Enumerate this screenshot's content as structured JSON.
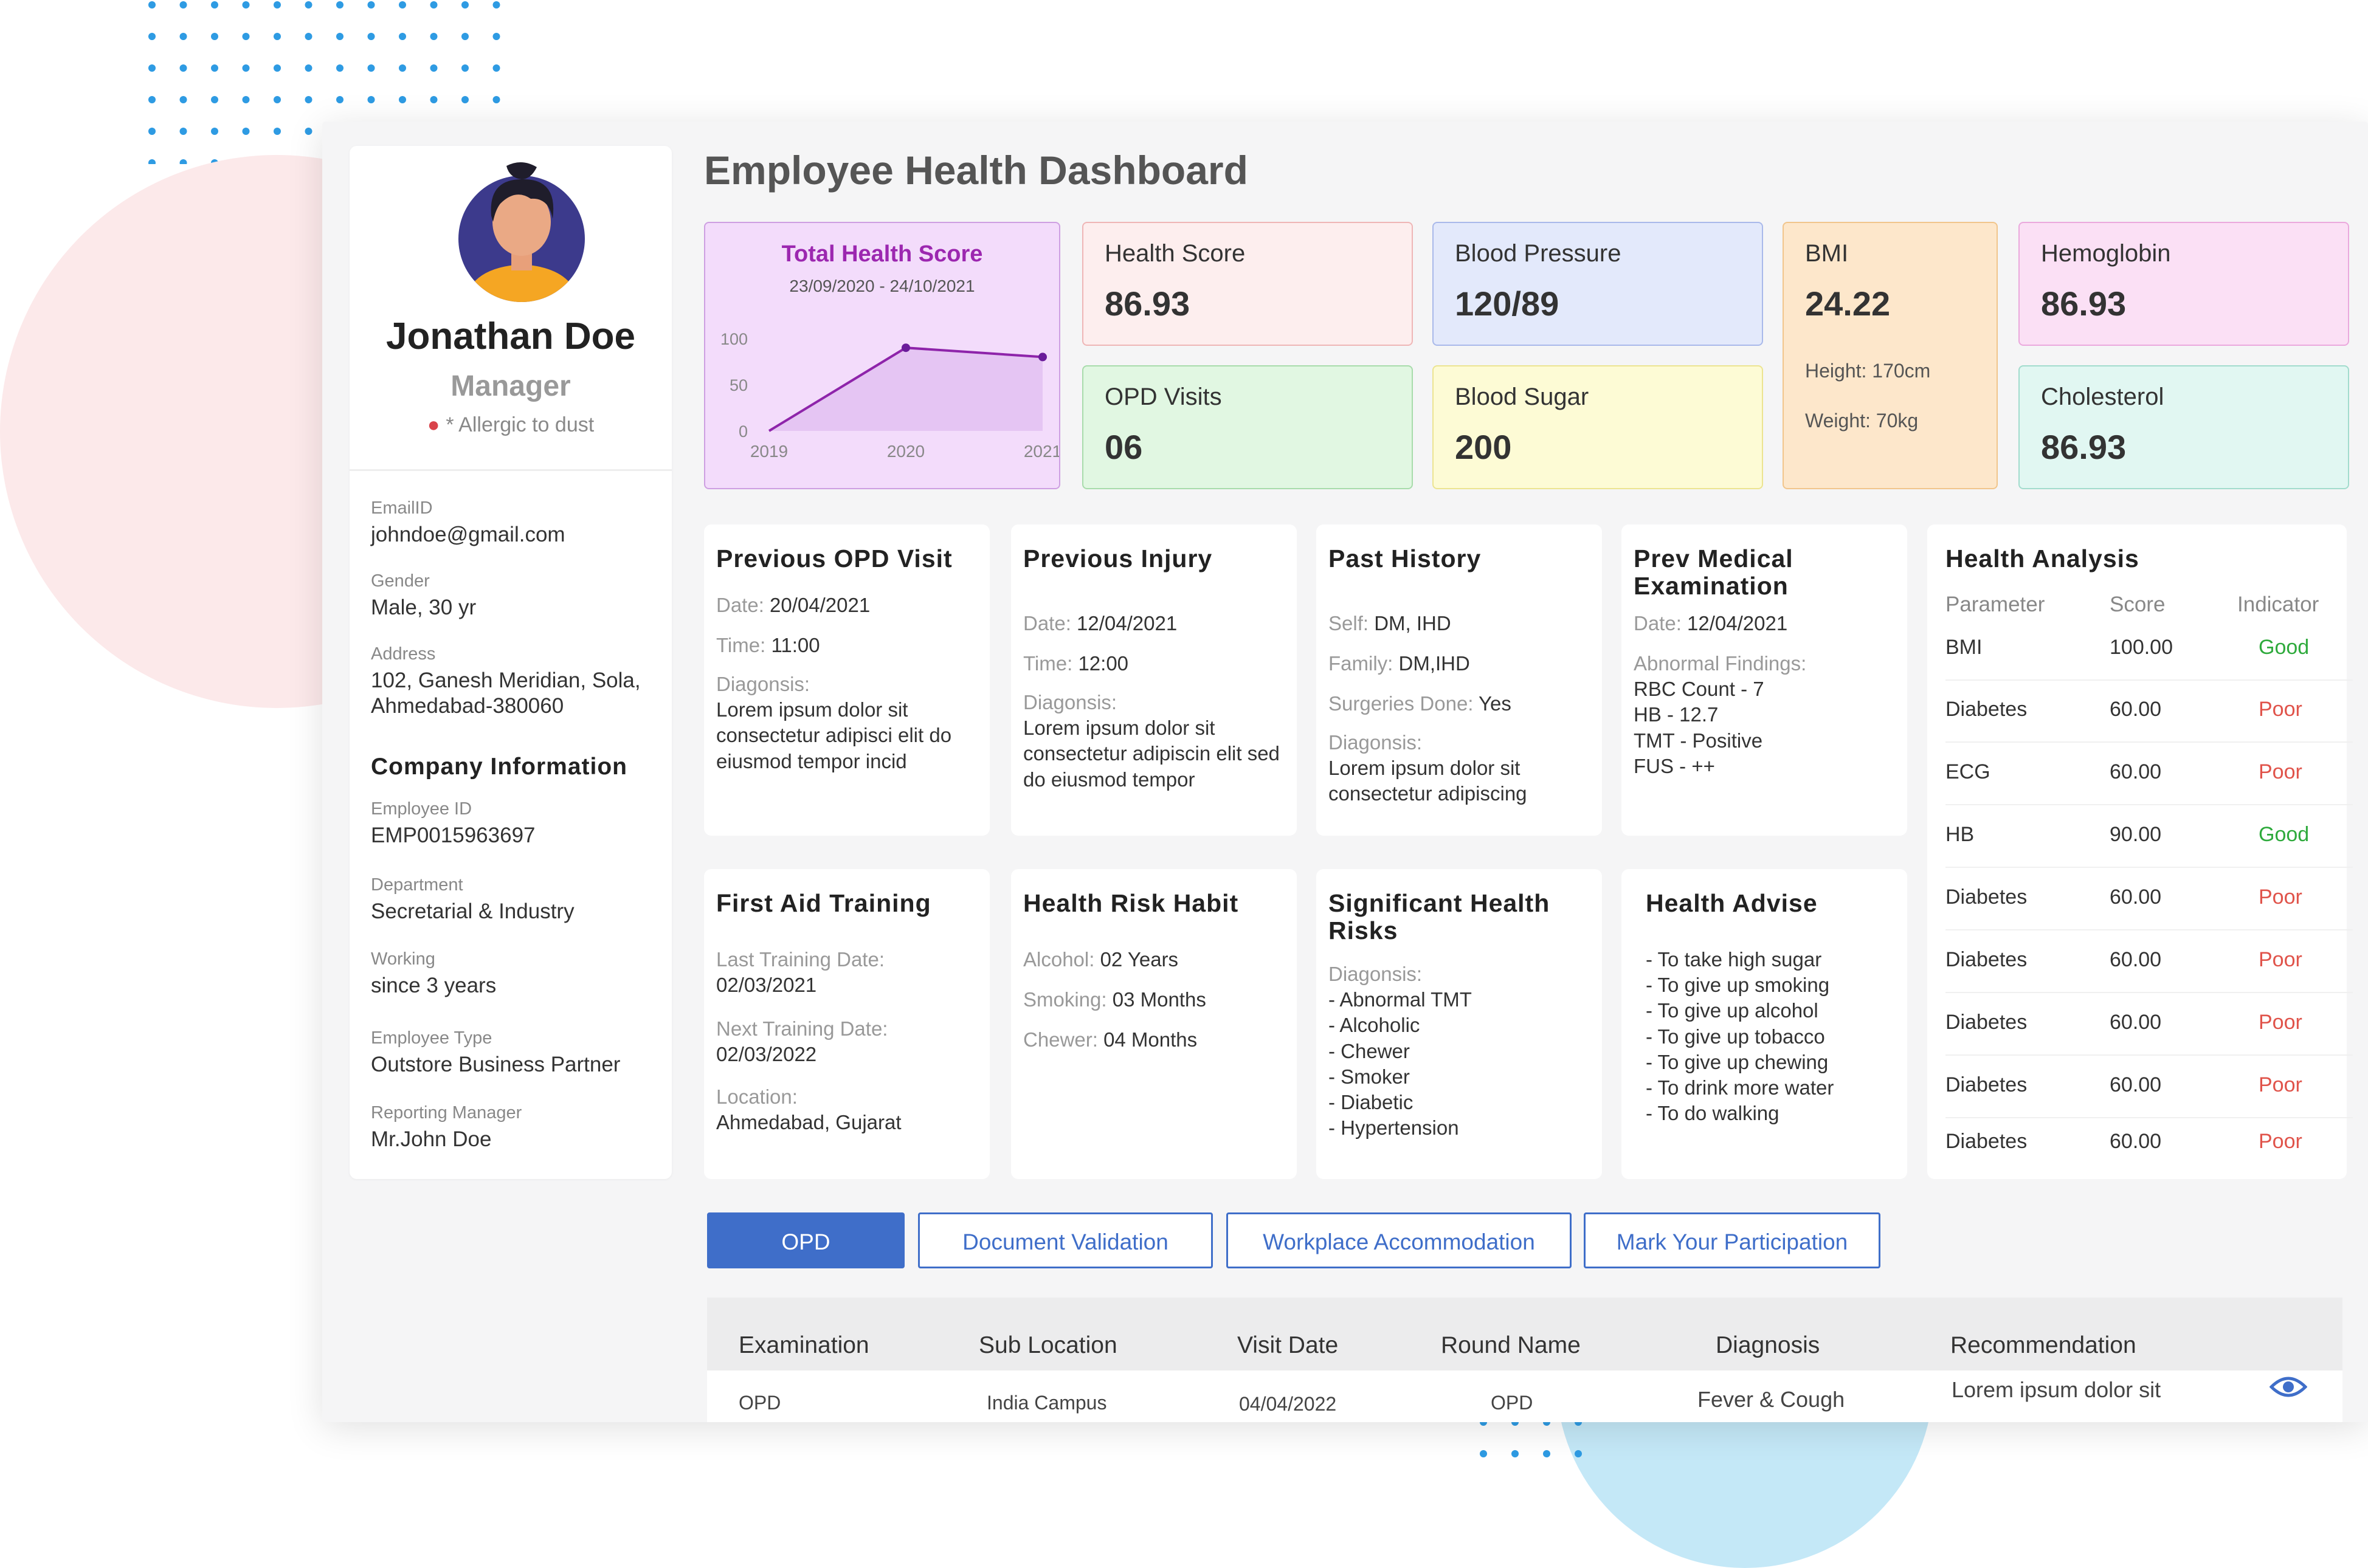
{
  "dashboard": {
    "title": "Employee Health Dashboard"
  },
  "profile": {
    "name": "Jonathan Doe",
    "role": "Manager",
    "allergy": "* Allergic to dust",
    "email_label": "EmailID",
    "email": "johndoe@gmail.com",
    "gender_label": "Gender",
    "gender": "Male,  30 yr",
    "address_label": "Address",
    "address": "102, Ganesh Meridian, Sola, Ahmedabad-380060"
  },
  "company": {
    "title": "Company Information",
    "employee_id_label": "Employee ID",
    "employee_id": "EMP0015963697",
    "department_label": "Department",
    "department": "Secretarial & Industry",
    "working_label": "Working",
    "working": "since 3 years",
    "type_label": "Employee Type",
    "type": "Outstore Business Partner",
    "manager_label": "Reporting Manager",
    "manager": "Mr.John Doe"
  },
  "total_score": {
    "title": "Total Health Score",
    "date_range": "23/09/2020 - 24/10/2021",
    "chart_data": {
      "type": "area",
      "x": [
        "2019",
        "2020",
        "2021"
      ],
      "values": [
        0,
        90,
        80
      ],
      "yticks": [
        "0",
        "50",
        "100"
      ],
      "ylim": [
        0,
        100
      ]
    }
  },
  "metrics": {
    "health_score": {
      "label": "Health Score",
      "value": "86.93"
    },
    "blood_pressure": {
      "label": "Blood Pressure",
      "value": "120/89"
    },
    "bmi": {
      "label": "BMI",
      "value": "24.22",
      "height": "Height: 170cm",
      "weight": "Weight: 70kg"
    },
    "hemoglobin": {
      "label": "Hemoglobin",
      "value": "86.93"
    },
    "opd_visits": {
      "label": "OPD Visits",
      "value": "06"
    },
    "blood_sugar": {
      "label": "Blood Sugar",
      "value": "200"
    },
    "cholesterol": {
      "label": "Cholesterol",
      "value": "86.93"
    }
  },
  "colors": {
    "accent": "#3f6ec9",
    "good": "#2eaa3c",
    "poor": "#e0534a",
    "score_card": "#f3dcfb"
  },
  "prev_opd": {
    "title": "Previous OPD Visit",
    "date_label": "Date:",
    "date": "20/04/2021",
    "time_label": "Time:",
    "time": "11:00",
    "diag_label": "Diagonsis:",
    "diag": "Lorem ipsum dolor sit consectetur adipisci elit do eiusmod tempor incid"
  },
  "prev_injury": {
    "title": "Previous Injury",
    "date_label": "Date:",
    "date": "12/04/2021",
    "time_label": "Time:",
    "time": "12:00",
    "diag_label": "Diagonsis:",
    "diag": "Lorem ipsum dolor sit consectetur adipiscin elit sed do eiusmod tempor"
  },
  "past_history": {
    "title": "Past History",
    "self_label": "Self:",
    "self": "DM, IHD",
    "family_label": "Family:",
    "family": "DM,IHD",
    "surgeries_label": "Surgeries Done:",
    "surgeries": "Yes",
    "diag_label": "Diagonsis:",
    "diag": "Lorem ipsum dolor sit consectetur adipiscing"
  },
  "prev_medical": {
    "title": "Prev Medical Examination",
    "date_label": "Date:",
    "date": "12/04/2021",
    "abnormal_label": "Abnormal Findings:",
    "findings": [
      "RBC Count - 7",
      "HB - 12.7",
      "TMT - Positive",
      "FUS - ++"
    ]
  },
  "first_aid": {
    "title": "First Aid Training",
    "last_label": "Last Training Date:",
    "last": "02/03/2021",
    "next_label": "Next Training Date:",
    "next": "02/03/2022",
    "location_label": "Location:",
    "location": "Ahmedabad, Gujarat"
  },
  "risk_habit": {
    "title": "Health Risk Habit",
    "alcohol_label": "Alcohol:",
    "alcohol": "02 Years",
    "smoking_label": "Smoking:",
    "smoking": "03 Months",
    "chewer_label": "Chewer:",
    "chewer": "04 Months"
  },
  "significant_risks": {
    "title": "Significant Health Risks",
    "diag_label": "Diagonsis:",
    "items": [
      "- Abnormal TMT",
      "- Alcoholic",
      "- Chewer",
      "- Smoker",
      "- Diabetic",
      "- Hypertension"
    ]
  },
  "advise": {
    "title": "Health Advise",
    "items": [
      "- To take high sugar",
      "- To give up smoking",
      "- To give up alcohol",
      "- To give up tobacco",
      "- To give up chewing",
      "- To drink more water",
      "- To do walking"
    ]
  },
  "analysis": {
    "title": "Health Analysis",
    "headers": [
      "Parameter",
      "Score",
      "Indicator"
    ],
    "rows": [
      {
        "param": "BMI",
        "score": "100.00",
        "indicator": "Good"
      },
      {
        "param": "Diabetes",
        "score": "60.00",
        "indicator": "Poor"
      },
      {
        "param": "ECG",
        "score": "60.00",
        "indicator": "Poor"
      },
      {
        "param": "HB",
        "score": "90.00",
        "indicator": "Good"
      },
      {
        "param": "Diabetes",
        "score": "60.00",
        "indicator": "Poor"
      },
      {
        "param": "Diabetes",
        "score": "60.00",
        "indicator": "Poor"
      },
      {
        "param": "Diabetes",
        "score": "60.00",
        "indicator": "Poor"
      },
      {
        "param": "Diabetes",
        "score": "60.00",
        "indicator": "Poor"
      },
      {
        "param": "Diabetes",
        "score": "60.00",
        "indicator": "Poor"
      }
    ]
  },
  "tabs": [
    "OPD",
    "Document Validation",
    "Workplace Accommodation",
    "Mark Your Participation"
  ],
  "table": {
    "headers": [
      "Examination",
      "Sub Location",
      "Visit Date",
      "Round Name",
      "Diagnosis",
      "Recommendation"
    ],
    "rows": [
      {
        "examination": "OPD",
        "sub_location": "India Campus",
        "visit_date": "04/04/2022",
        "round_name": "OPD",
        "diagnosis": "Fever & Cough",
        "recommendation": "Lorem ipsum dolor sit"
      }
    ]
  }
}
